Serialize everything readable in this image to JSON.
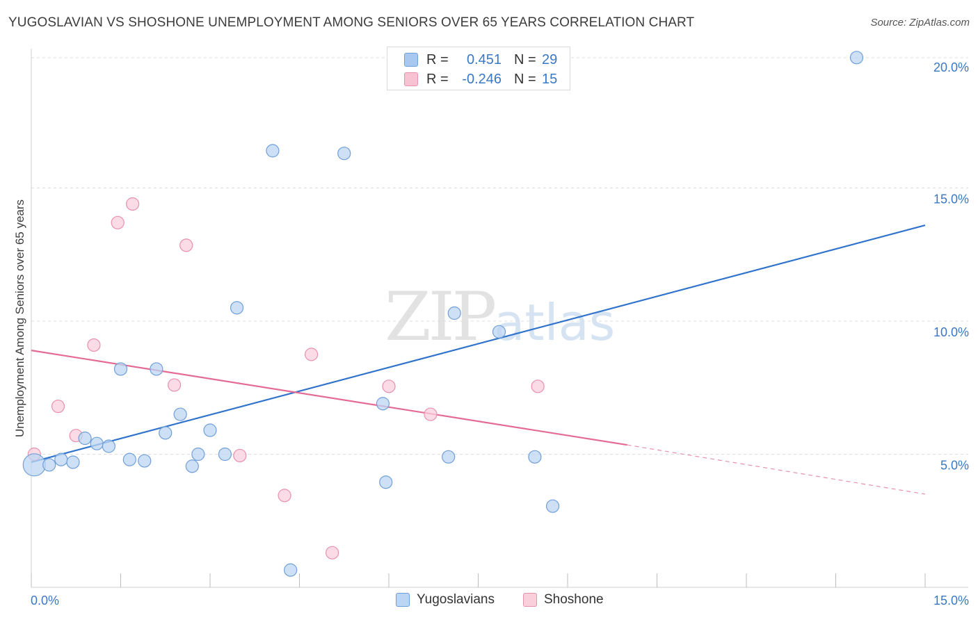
{
  "header": {
    "title": "YUGOSLAVIAN VS SHOSHONE UNEMPLOYMENT AMONG SENIORS OVER 65 YEARS CORRELATION CHART",
    "source": "Source: ZipAtlas.com"
  },
  "watermark": {
    "zip": "ZIP",
    "atlas": "atlas"
  },
  "legend": {
    "rows": [
      {
        "r_label": "R =",
        "r_value": "0.451",
        "n_label": "N =",
        "n_value": "29",
        "color": "#a9c8f0",
        "border": "#6f9fd8"
      },
      {
        "r_label": "R =",
        "r_value": "-0.246",
        "n_label": "N =",
        "n_value": "15",
        "color": "#f7c3d3",
        "border": "#e891ab"
      }
    ]
  },
  "bottom_legend": [
    {
      "label": "Yugoslavians",
      "color": "#bcd5f3",
      "border": "#6f9fd8"
    },
    {
      "label": "Shoshone",
      "color": "#f9cfdc",
      "border": "#e891ab"
    }
  ],
  "chart_data": {
    "type": "scatter",
    "title": "YUGOSLAVIAN VS SHOSHONE UNEMPLOYMENT AMONG SENIORS OVER 65 YEARS CORRELATION CHART",
    "xlabel": "",
    "ylabel": "Unemployment Among Seniors over 65 years",
    "xlim": [
      0,
      15
    ],
    "ylim": [
      0,
      20.5
    ],
    "x_tick_labels": [
      {
        "value": 0,
        "label": "0.0%"
      },
      {
        "value": 15,
        "label": "15.0%"
      }
    ],
    "y_tick_labels": [
      {
        "value": 5,
        "label": "5.0%"
      },
      {
        "value": 10,
        "label": "10.0%"
      },
      {
        "value": 15,
        "label": "15.0%"
      },
      {
        "value": 20,
        "label": "20.0%"
      }
    ],
    "x_minor_ticks": [
      0,
      1.5,
      3,
      4.5,
      6,
      7.5,
      9,
      10.5,
      12,
      13.5,
      15
    ],
    "grid": true,
    "series": [
      {
        "name": "Yugoslavians",
        "color": "#6f9fd8",
        "fill": "#bcd5f3",
        "points": [
          [
            0.05,
            4.6,
            16
          ],
          [
            0.3,
            4.6,
            9
          ],
          [
            0.5,
            4.8,
            9
          ],
          [
            0.7,
            4.7,
            9
          ],
          [
            0.9,
            5.6,
            9
          ],
          [
            1.1,
            5.4,
            9
          ],
          [
            1.3,
            5.3,
            9
          ],
          [
            1.5,
            8.2,
            9
          ],
          [
            1.65,
            4.8,
            9
          ],
          [
            1.9,
            4.75,
            9
          ],
          [
            2.1,
            8.2,
            9
          ],
          [
            2.25,
            5.8,
            9
          ],
          [
            2.5,
            6.5,
            9
          ],
          [
            2.7,
            4.55,
            9
          ],
          [
            2.8,
            5.0,
            9
          ],
          [
            3.0,
            5.9,
            9
          ],
          [
            3.25,
            5.0,
            9
          ],
          [
            3.45,
            10.5,
            9
          ],
          [
            4.05,
            16.4,
            9
          ],
          [
            4.35,
            0.65,
            9
          ],
          [
            5.25,
            16.3,
            9
          ],
          [
            5.9,
            6.9,
            9
          ],
          [
            5.95,
            3.95,
            9
          ],
          [
            7.0,
            4.9,
            9
          ],
          [
            7.1,
            10.3,
            9
          ],
          [
            7.85,
            9.6,
            9
          ],
          [
            8.45,
            4.9,
            9
          ],
          [
            8.75,
            3.05,
            9
          ],
          [
            13.85,
            19.9,
            9
          ]
        ],
        "trend": {
          "x0": 0,
          "y0": 4.7,
          "x1": 15,
          "y1": 13.6
        }
      },
      {
        "name": "Shoshone",
        "color": "#e891ab",
        "fill": "#f9cfdc",
        "points": [
          [
            0.05,
            5.0,
            9
          ],
          [
            0.45,
            6.8,
            9
          ],
          [
            0.75,
            5.7,
            9
          ],
          [
            1.05,
            9.1,
            9
          ],
          [
            1.45,
            13.7,
            9
          ],
          [
            1.7,
            14.4,
            9
          ],
          [
            2.4,
            7.6,
            9
          ],
          [
            2.6,
            12.85,
            9
          ],
          [
            3.5,
            4.95,
            9
          ],
          [
            4.25,
            3.45,
            9
          ],
          [
            4.7,
            8.75,
            9
          ],
          [
            5.05,
            1.3,
            9
          ],
          [
            6.0,
            7.55,
            9
          ],
          [
            6.7,
            6.5,
            9
          ],
          [
            8.5,
            7.55,
            9
          ]
        ],
        "trend": {
          "x0": 0,
          "y0": 8.9,
          "x1": 10.0,
          "y1": 5.35
        },
        "trend_extension": {
          "x0": 10.0,
          "y0": 5.35,
          "x1": 15,
          "y1": 3.5
        }
      }
    ]
  }
}
